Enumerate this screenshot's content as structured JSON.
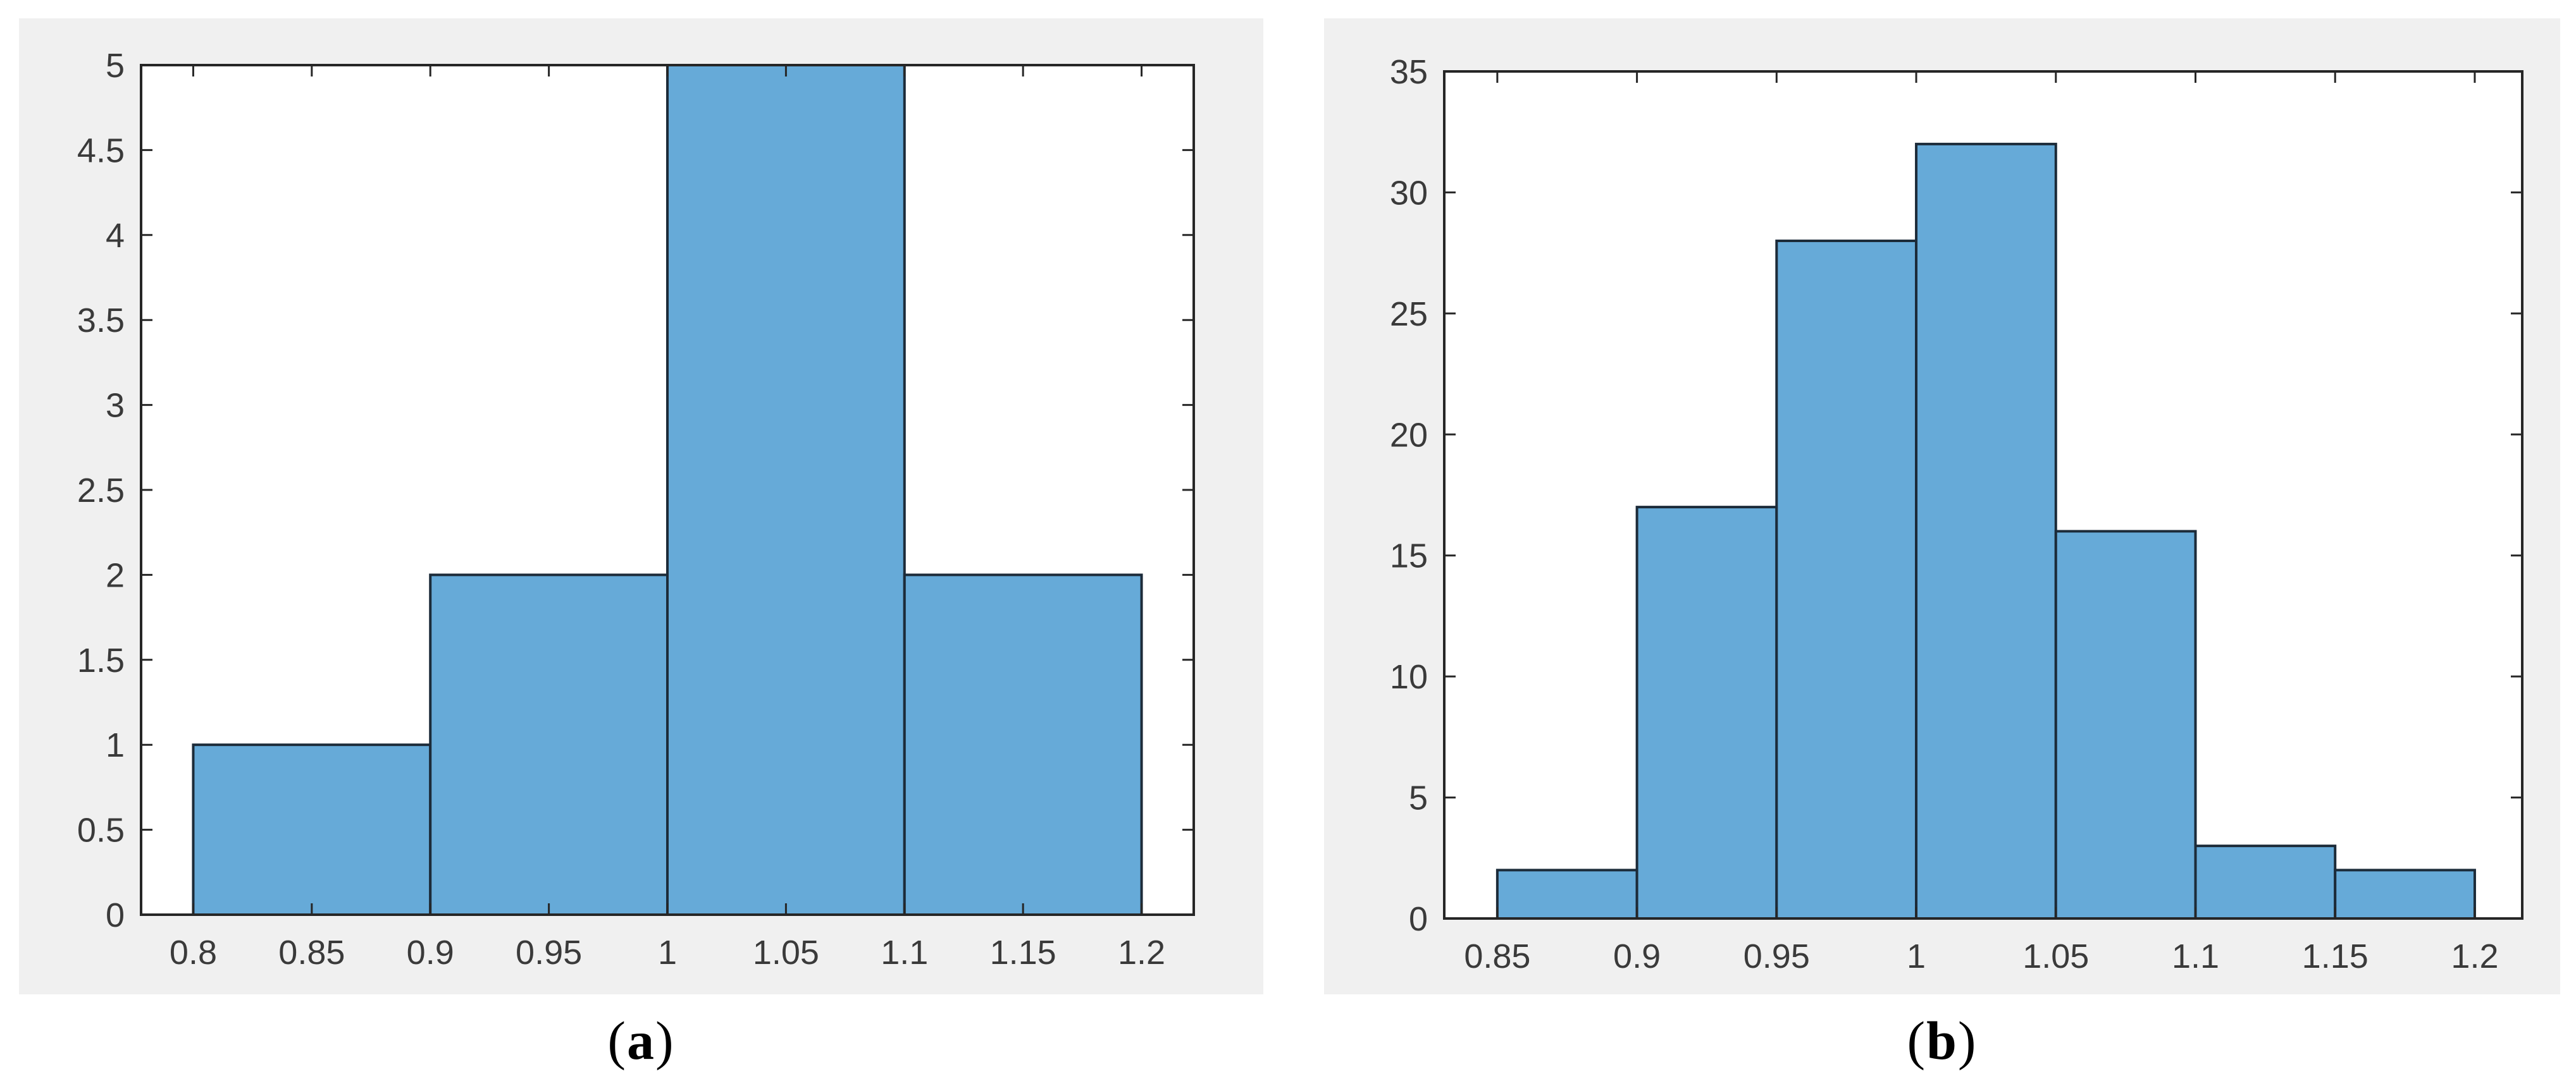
{
  "figure": {
    "captions": {
      "a": "(a)",
      "b": "(b)"
    }
  },
  "style": {
    "panel_background": "#F0F0F0",
    "plot_background": "#FFFFFF",
    "bar_fill": "#66AAD8",
    "bar_edge": "#1C2B39",
    "axis_color": "#262626",
    "tick_label_color": "#3A3A3A"
  },
  "chart_data": [
    {
      "id": "a",
      "type": "bar",
      "subtype": "histogram",
      "title": "",
      "xlabel": "",
      "ylabel": "",
      "caption": "(a)",
      "bin_edges": [
        0.8,
        0.9,
        1.0,
        1.1,
        1.2
      ],
      "counts": [
        1,
        2,
        5,
        2
      ],
      "xticks": [
        0.8,
        0.85,
        0.9,
        0.95,
        1,
        1.05,
        1.1,
        1.15,
        1.2
      ],
      "yticks": [
        0,
        0.5,
        1,
        1.5,
        2,
        2.5,
        3,
        3.5,
        4,
        4.5,
        5
      ],
      "xlim": [
        0.778,
        1.222
      ],
      "ylim": [
        0,
        5
      ],
      "grid": false,
      "legend": null
    },
    {
      "id": "b",
      "type": "bar",
      "subtype": "histogram",
      "title": "",
      "xlabel": "",
      "ylabel": "",
      "caption": "(b)",
      "bin_edges": [
        0.85,
        0.9,
        0.95,
        1.0,
        1.05,
        1.1,
        1.15,
        1.2
      ],
      "counts": [
        2,
        17,
        28,
        32,
        16,
        3,
        2
      ],
      "xticks": [
        0.85,
        0.9,
        0.95,
        1,
        1.05,
        1.1,
        1.15,
        1.2
      ],
      "yticks": [
        0,
        5,
        10,
        15,
        20,
        25,
        30,
        35
      ],
      "xlim": [
        0.831,
        1.217
      ],
      "ylim": [
        0,
        35
      ],
      "grid": false,
      "legend": null
    }
  ]
}
